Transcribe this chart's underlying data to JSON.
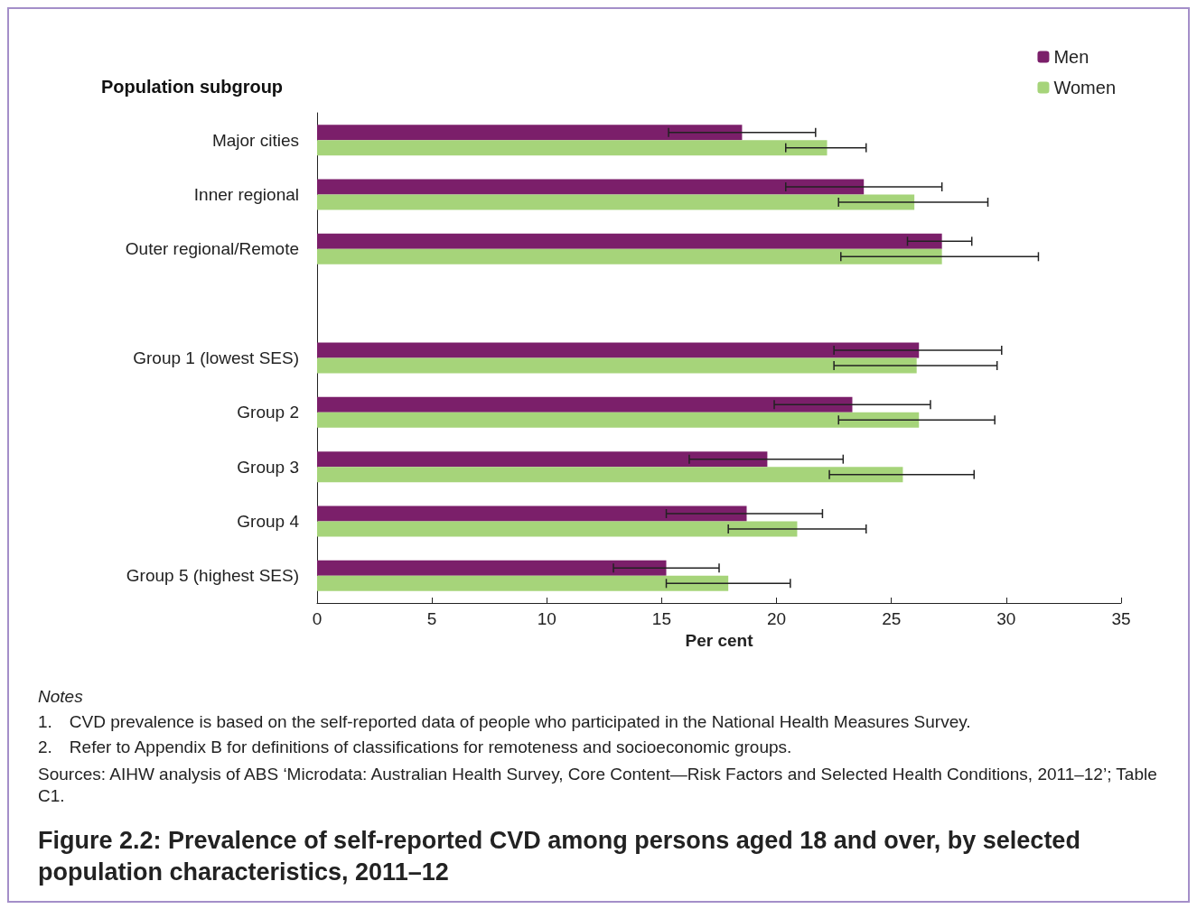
{
  "chart_data": {
    "type": "bar",
    "orientation": "horizontal",
    "title": "Figure 2.2: Prevalence of self-reported CVD among persons aged 18 and over, by selected population characteristics, 2011–12",
    "ylabel": "Population subgroup",
    "xlabel": "Per cent",
    "categories": [
      "Major cities",
      "Inner regional",
      "Outer regional/Remote",
      null,
      "Group 1 (lowest SES)",
      "Group 2",
      "Group 3",
      "Group 4",
      "Group 5 (highest SES)"
    ],
    "series": [
      {
        "name": "Men",
        "color": "#7b1f6a",
        "values": [
          18.5,
          23.8,
          27.2,
          null,
          26.2,
          23.3,
          19.6,
          18.7,
          15.2
        ],
        "errors": [
          [
            15.3,
            21.7
          ],
          [
            20.4,
            27.2
          ],
          [
            25.7,
            28.5
          ],
          null,
          [
            22.5,
            29.8
          ],
          [
            19.9,
            26.7
          ],
          [
            16.2,
            22.9
          ],
          [
            15.2,
            22.0
          ],
          [
            12.9,
            17.5
          ]
        ]
      },
      {
        "name": "Women",
        "color": "#a6d47a",
        "values": [
          22.2,
          26.0,
          27.2,
          null,
          26.1,
          26.2,
          25.5,
          20.9,
          17.9
        ],
        "errors": [
          [
            20.4,
            23.9
          ],
          [
            22.7,
            29.2
          ],
          [
            22.8,
            31.4
          ],
          null,
          [
            22.5,
            29.6
          ],
          [
            22.7,
            29.5
          ],
          [
            22.3,
            28.6
          ],
          [
            17.9,
            23.9
          ],
          [
            15.2,
            20.6
          ]
        ]
      }
    ],
    "xlim": [
      0,
      35
    ],
    "xticks": [
      0,
      5,
      10,
      15,
      20,
      25,
      30,
      35
    ],
    "grid": false,
    "legend": "top right",
    "annotations": [
      "Notes",
      "1. CVD prevalence is based on the self-reported data of people who participated in the National Health Measures Survey.",
      "2. Refer to Appendix B for definitions of classifications for remoteness and socioeconomic groups.",
      "Sources: AIHW analysis of ABS ‘Microdata: Australian Health Survey, Core Content—Risk Factors and Selected Health Conditions, 2011–12’; Table C1."
    ]
  }
}
